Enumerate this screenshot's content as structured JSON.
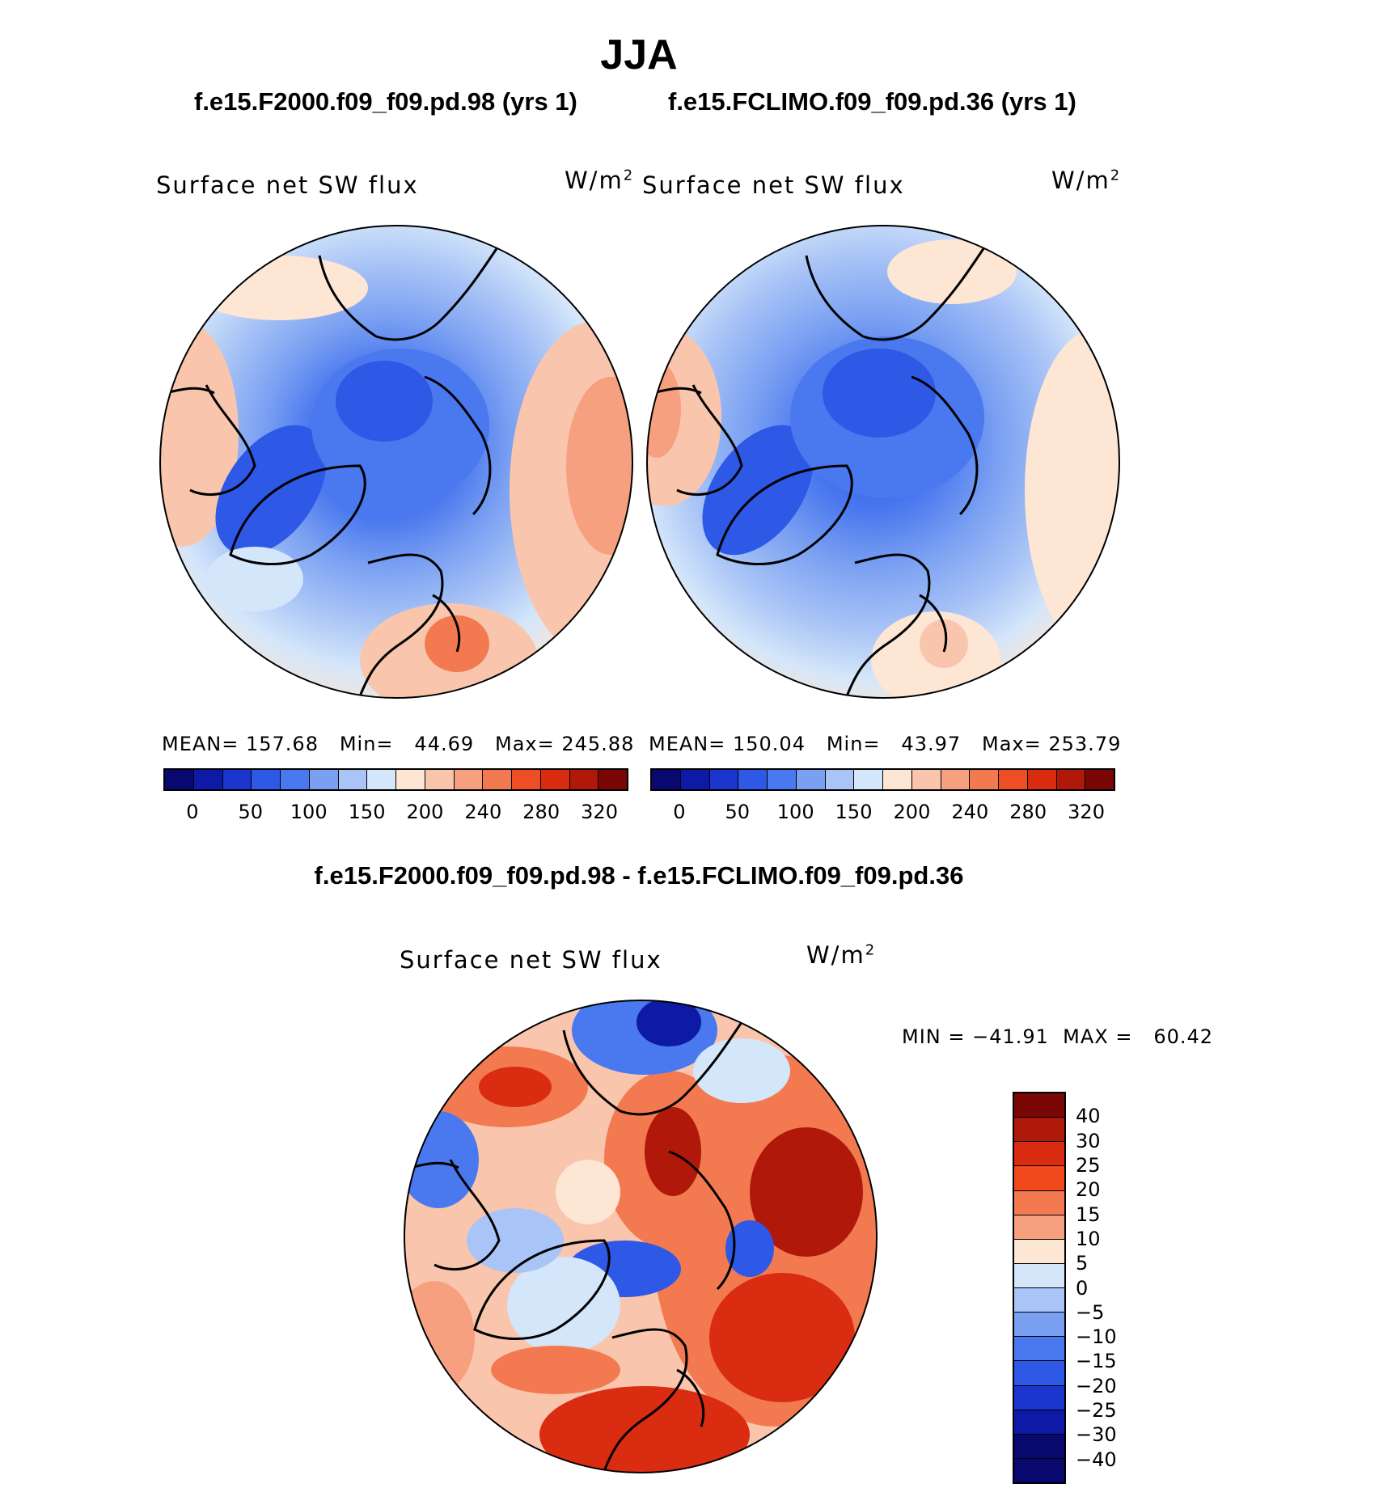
{
  "title": "JJA",
  "cases": {
    "left_title": "f.e15.F2000.f09_f09.pd.98 (yrs 1)",
    "right_title": "f.e15.FCLIMO.f09_f09.pd.36 (yrs 1)",
    "diff_title": "f.e15.F2000.f09_f09.pd.98 - f.e15.FCLIMO.f09_f09.pd.36"
  },
  "panels": {
    "left": {
      "variable": "Surface net SW flux",
      "units": "W/m",
      "units_exp": "2",
      "stats": "MEAN= 157.68   Min=   44.69   Max= 245.88"
    },
    "right": {
      "variable": "Surface net SW flux",
      "units": "W/m",
      "units_exp": "2",
      "stats": "MEAN= 150.04   Min=   43.97   Max= 253.79"
    },
    "diff": {
      "variable": "Surface net SW flux",
      "units": "W/m",
      "units_exp": "2",
      "stats": "MIN = −41.91  MAX =   60.42"
    }
  },
  "colorbar_abs": {
    "colors": [
      "#08086e",
      "#0c1aa6",
      "#1a36cf",
      "#2e58e6",
      "#4a78ee",
      "#7aa0f2",
      "#a9c4f6",
      "#d4e6fa",
      "#fde6d4",
      "#f9c6ad",
      "#f6a07f",
      "#f37a50",
      "#ee4e24",
      "#da2c10",
      "#b0180a",
      "#7a0606"
    ],
    "labels": [
      "0",
      "50",
      "100",
      "150",
      "200",
      "240",
      "280",
      "320"
    ]
  },
  "colorbar_diff": {
    "colors": [
      "#7a0606",
      "#b0180a",
      "#da2c10",
      "#f04a1c",
      "#f37a50",
      "#f6a07f",
      "#fde6d4",
      "#d4e6fa",
      "#a9c4f6",
      "#7aa0f2",
      "#4a78ee",
      "#2e58e6",
      "#1a36cf",
      "#0c1aa6",
      "#08086e"
    ],
    "labels": [
      "40",
      "30",
      "25",
      "20",
      "15",
      "10",
      "5",
      "0",
      "−5",
      "−10",
      "−15",
      "−20",
      "−25",
      "−30",
      "−40"
    ]
  },
  "map_colors": {
    "deep_blue": "#2e58e6",
    "mid_blue": "#4a78ee",
    "light_blue": "#7aa0f2",
    "pale_blue": "#d4e6fa",
    "pale_orange": "#fde6d4",
    "orange": "#f6a07f",
    "red_orange": "#f37a50",
    "red": "#da2c10",
    "dark_red": "#b0180a"
  }
}
